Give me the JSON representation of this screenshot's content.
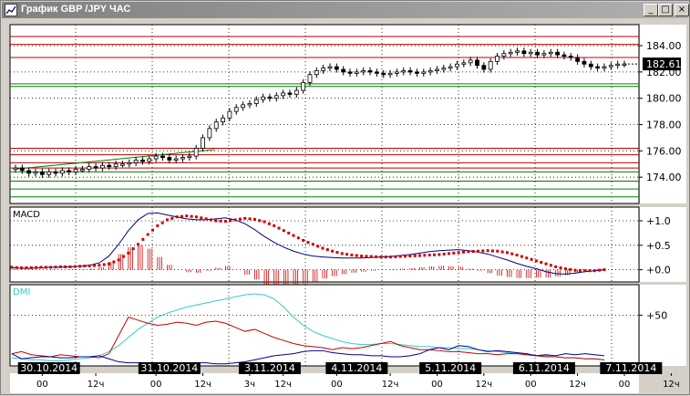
{
  "window": {
    "title": "График GBP /JPY  ЧАС",
    "buttons": {
      "minimize": "_",
      "maximize": "□",
      "close": "×"
    }
  },
  "colors": {
    "frame": "#d4d0c8",
    "plot_bg": "#ffffff",
    "candle": "#000000",
    "level_red": "#c00000",
    "level_green": "#008000",
    "macd_signal": "#cc0000",
    "macd_line": "#000080",
    "dmi_adx": "#33cccc",
    "dmi_minus": "#cc0000",
    "dmi_plus": "#000099"
  },
  "chart_data": [
    {
      "type": "candlestick",
      "price_axis": {
        "ticks": [
          "184.00",
          "182.00",
          "180.00",
          "178.00",
          "176.00",
          "174.00"
        ],
        "range": [
          172.0,
          185.6
        ]
      },
      "current_price": "182.61",
      "horizontal_levels": {
        "red": [
          184.7,
          184.1,
          183.1,
          176.2,
          175.7,
          175.1,
          174.7
        ],
        "green": [
          181.1,
          180.9,
          174.4,
          173.7,
          173.1,
          172.5
        ]
      },
      "trendline": {
        "from": [
          0,
          174.6
        ],
        "to": [
          147,
          176.1
        ]
      },
      "close_series": [
        174.7,
        174.5,
        174.3,
        174.4,
        174.2,
        174.4,
        174.3,
        174.5,
        174.4,
        174.6,
        174.6,
        174.8,
        174.7,
        174.9,
        174.8,
        175.0,
        175.0,
        175.1,
        175.3,
        175.2,
        175.4,
        175.6,
        175.5,
        175.3,
        175.4,
        175.5,
        175.6,
        176.2,
        177.0,
        177.7,
        178.2,
        178.5,
        179.0,
        179.3,
        179.5,
        179.6,
        179.9,
        180.1,
        180.0,
        180.2,
        180.4,
        180.3,
        180.6,
        181.2,
        181.8,
        182.1,
        182.3,
        182.4,
        182.2,
        182.0,
        181.9,
        182.0,
        182.1,
        182.0,
        181.9,
        181.8,
        181.9,
        182.0,
        182.1,
        182.0,
        181.9,
        182.0,
        182.1,
        182.2,
        182.3,
        182.4,
        182.6,
        182.7,
        182.9,
        182.5,
        182.2,
        182.8,
        183.2,
        183.4,
        183.5,
        183.6,
        183.4,
        183.5,
        183.3,
        183.4,
        183.5,
        183.3,
        183.2,
        183.1,
        182.8,
        182.6,
        182.4,
        182.3,
        182.4,
        182.5,
        182.6,
        182.61
      ]
    },
    {
      "type": "line",
      "name": "MACD",
      "y_ticks": [
        "+1.0",
        "+0.5",
        "+0.0"
      ],
      "range": [
        -0.25,
        1.28
      ],
      "signal": [
        0.05,
        0.04,
        0.04,
        0.05,
        0.05,
        0.06,
        0.06,
        0.07,
        0.08,
        0.09,
        0.12,
        0.2,
        0.34,
        0.52,
        0.72,
        0.9,
        1.02,
        1.08,
        1.1,
        1.08,
        1.04,
        1.0,
        0.99,
        1.02,
        1.05,
        1.03,
        0.98,
        0.9,
        0.8,
        0.7,
        0.6,
        0.52,
        0.44,
        0.38,
        0.33,
        0.3,
        0.28,
        0.27,
        0.26,
        0.26,
        0.27,
        0.28,
        0.29,
        0.3,
        0.31,
        0.33,
        0.35,
        0.37,
        0.38,
        0.39,
        0.38,
        0.35,
        0.3,
        0.24,
        0.18,
        0.12,
        0.06,
        0.02,
        -0.01,
        -0.02,
        -0.02,
        0.0
      ],
      "macd": [
        0.04,
        0.03,
        0.03,
        0.04,
        0.05,
        0.05,
        0.06,
        0.07,
        0.09,
        0.14,
        0.28,
        0.52,
        0.8,
        1.02,
        1.15,
        1.16,
        1.12,
        1.08,
        1.04,
        1.02,
        1.02,
        1.04,
        1.06,
        1.02,
        0.94,
        0.82,
        0.68,
        0.56,
        0.46,
        0.38,
        0.32,
        0.28,
        0.26,
        0.25,
        0.24,
        0.24,
        0.24,
        0.25,
        0.26,
        0.27,
        0.29,
        0.31,
        0.34,
        0.37,
        0.39,
        0.4,
        0.41,
        0.39,
        0.36,
        0.32,
        0.26,
        0.2,
        0.13,
        0.07,
        0.02,
        -0.04,
        -0.08,
        -0.09,
        -0.07,
        -0.04,
        -0.02,
        0.0
      ],
      "histogram": [
        0.01,
        0.0,
        0.0,
        0.0,
        0.01,
        0.0,
        0.01,
        0.01,
        0.02,
        0.05,
        0.16,
        0.32,
        0.46,
        0.5,
        0.43,
        0.26,
        0.1,
        0.0,
        -0.05,
        -0.06,
        -0.02,
        0.04,
        0.07,
        0.0,
        -0.1,
        -0.2,
        -0.3,
        -0.34,
        -0.34,
        -0.32,
        -0.28,
        -0.24,
        -0.18,
        -0.13,
        -0.09,
        -0.06,
        -0.04,
        -0.02,
        0.0,
        0.01,
        0.02,
        0.03,
        0.05,
        0.07,
        0.08,
        0.07,
        0.06,
        0.02,
        -0.02,
        -0.07,
        -0.12,
        -0.15,
        -0.17,
        -0.17,
        -0.16,
        -0.16,
        -0.14,
        -0.11,
        -0.06,
        -0.02,
        0.0,
        0.0
      ]
    },
    {
      "type": "line",
      "name": "DMI",
      "y_ticks": [
        "+50"
      ],
      "range": [
        0,
        80
      ],
      "adx": [
        8,
        7,
        6,
        6,
        5,
        5,
        6,
        7,
        8,
        10,
        14,
        20,
        28,
        36,
        42,
        48,
        52,
        55,
        58,
        60,
        62,
        64,
        66,
        68,
        70,
        71,
        70,
        66,
        58,
        48,
        40,
        34,
        30,
        27,
        24,
        22,
        21,
        21,
        22,
        22,
        21,
        20,
        19,
        19,
        18,
        18,
        17,
        17,
        16,
        15,
        14,
        13,
        12,
        11,
        10,
        10,
        9,
        8,
        8,
        7,
        7,
        6
      ],
      "minus_di": [
        12,
        14,
        11,
        10,
        9,
        11,
        10,
        9,
        9,
        8,
        12,
        30,
        48,
        45,
        42,
        40,
        41,
        43,
        42,
        40,
        43,
        44,
        42,
        38,
        34,
        36,
        32,
        28,
        25,
        22,
        20,
        19,
        18,
        16,
        18,
        17,
        18,
        20,
        22,
        24,
        20,
        18,
        16,
        16,
        15,
        14,
        14,
        13,
        12,
        12,
        11,
        12,
        12,
        11,
        10,
        9,
        9,
        8,
        8,
        7,
        7,
        6
      ],
      "plus_di": [
        12,
        7,
        8,
        9,
        9,
        8,
        8,
        9,
        9,
        10,
        7,
        4,
        3,
        3,
        3,
        2,
        2,
        3,
        3,
        3,
        3,
        2,
        2,
        3,
        4,
        6,
        8,
        10,
        11,
        12,
        14,
        15,
        15,
        13,
        12,
        11,
        11,
        10,
        10,
        9,
        9,
        10,
        12,
        16,
        18,
        16,
        20,
        19,
        16,
        14,
        15,
        14,
        13,
        12,
        10,
        11,
        10,
        12,
        11,
        12,
        11,
        10
      ]
    }
  ],
  "time_axis": {
    "date_labels": [
      {
        "text": "30.10.2014",
        "index": 5
      },
      {
        "text": "31.10.2014",
        "index": 23
      },
      {
        "text": "3.11.2014",
        "index": 38
      },
      {
        "text": "4.11.2014",
        "index": 51
      },
      {
        "text": "5.11.2014",
        "index": 65
      },
      {
        "text": "6.11.2014",
        "index": 79
      },
      {
        "text": "7.11.2014",
        "index": 92
      }
    ],
    "hour_labels": [
      {
        "text": "00",
        "index": 4
      },
      {
        "text": "12ч",
        "index": 12
      },
      {
        "text": "00",
        "index": 21
      },
      {
        "text": "12ч",
        "index": 28
      },
      {
        "text": "3ч",
        "index": 35
      },
      {
        "text": "12ч",
        "index": 40
      },
      {
        "text": "00",
        "index": 48
      },
      {
        "text": "12ч",
        "index": 56
      },
      {
        "text": "00",
        "index": 63
      },
      {
        "text": "12ч",
        "index": 70
      },
      {
        "text": "00",
        "index": 77
      },
      {
        "text": "12ч",
        "index": 84
      },
      {
        "text": "00",
        "index": 91
      },
      {
        "text": "12ч",
        "index": 98
      }
    ]
  }
}
